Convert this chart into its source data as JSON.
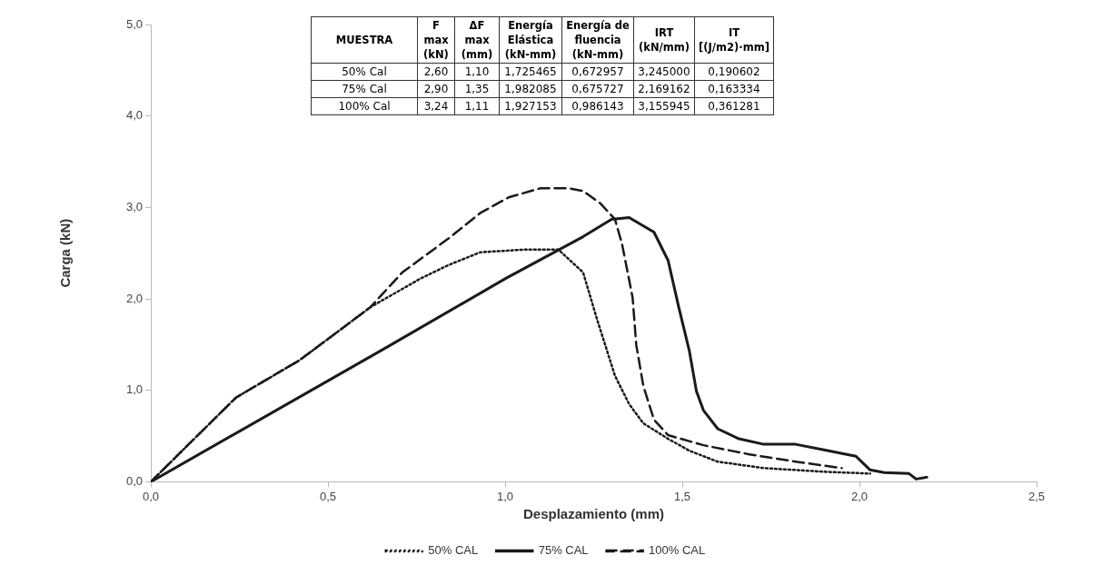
{
  "chart_data": {
    "type": "line",
    "xlabel": "Desplazamiento (mm)",
    "ylabel": "Carga (kN)",
    "xlim": [
      0,
      2.5
    ],
    "ylim": [
      0,
      5
    ],
    "xticks": [
      {
        "value": 0,
        "label": "0,0"
      },
      {
        "value": 0.5,
        "label": "0,5"
      },
      {
        "value": 1,
        "label": "1,0"
      },
      {
        "value": 1.5,
        "label": "1,5"
      },
      {
        "value": 2,
        "label": "2,0"
      },
      {
        "value": 2.5,
        "label": "2,5"
      }
    ],
    "yticks": [
      {
        "value": 0,
        "label": "0,0"
      },
      {
        "value": 1,
        "label": "1,0"
      },
      {
        "value": 2,
        "label": "2,0"
      },
      {
        "value": 3,
        "label": "3,0"
      },
      {
        "value": 4,
        "label": "4,0"
      },
      {
        "value": 5,
        "label": "5,0"
      }
    ],
    "grid": false,
    "legend": "bottom",
    "marker": "none",
    "series": [
      {
        "name": "50% CAL",
        "color": "#1a1a1a",
        "line_style": "dotted",
        "x": [
          0,
          0.24,
          0.42,
          0.62,
          0.76,
          0.84,
          0.93,
          1.06,
          1.15,
          1.22,
          1.26,
          1.31,
          1.35,
          1.39,
          1.46,
          1.52,
          1.6,
          1.73,
          1.9,
          2.03
        ],
        "values": [
          0,
          0.92,
          1.33,
          1.91,
          2.22,
          2.37,
          2.51,
          2.54,
          2.54,
          2.29,
          1.77,
          1.16,
          0.85,
          0.64,
          0.47,
          0.34,
          0.22,
          0.15,
          0.11,
          0.09
        ]
      },
      {
        "name": "75% CAL",
        "color": "#1a1a1a",
        "line_style": "solid",
        "x": [
          0,
          0.67,
          1.0,
          1.22,
          1.3,
          1.35,
          1.42,
          1.46,
          1.49,
          1.52,
          1.54,
          1.56,
          1.6,
          1.66,
          1.73,
          1.82,
          1.9,
          1.99,
          2.03,
          2.07,
          2.14,
          2.16,
          2.19
        ],
        "values": [
          0,
          1.48,
          2.22,
          2.68,
          2.87,
          2.89,
          2.73,
          2.42,
          1.91,
          1.43,
          0.99,
          0.78,
          0.58,
          0.47,
          0.41,
          0.41,
          0.35,
          0.28,
          0.13,
          0.1,
          0.09,
          0.03,
          0.05
        ]
      },
      {
        "name": "100% CAL",
        "color": "#1a1a1a",
        "line_style": "dashed",
        "x": [
          0,
          0.24,
          0.42,
          0.62,
          0.71,
          0.84,
          0.93,
          1.01,
          1.1,
          1.18,
          1.22,
          1.27,
          1.31,
          1.33,
          1.36,
          1.37,
          1.39,
          1.42,
          1.46,
          1.56,
          1.69,
          1.82,
          1.95
        ],
        "values": [
          0,
          0.92,
          1.33,
          1.91,
          2.29,
          2.66,
          2.94,
          3.11,
          3.21,
          3.21,
          3.18,
          3.04,
          2.87,
          2.6,
          2.01,
          1.5,
          1.05,
          0.68,
          0.51,
          0.4,
          0.3,
          0.22,
          0.15
        ]
      }
    ],
    "annotations": [
      "MUESTRA",
      "F max (kN)",
      "ΔF max (mm)",
      "Energía Elástica (kN-mm)",
      "Energía de fluencia (kN-mm)",
      "IRT (kN/mm)",
      "IT [(J/m2)·mm]",
      "50% Cal",
      "2,60",
      "1,10",
      "1,725465",
      "0,672957",
      "3,245000",
      "0,190602",
      "75% Cal",
      "2,90",
      "1,35",
      "1,982085",
      "0,675727",
      "2,169162",
      "0,163334",
      "100% Cal",
      "3,24",
      "1,11",
      "1,927153",
      "0,986143",
      "3,155945",
      "0,361281"
    ]
  }
}
